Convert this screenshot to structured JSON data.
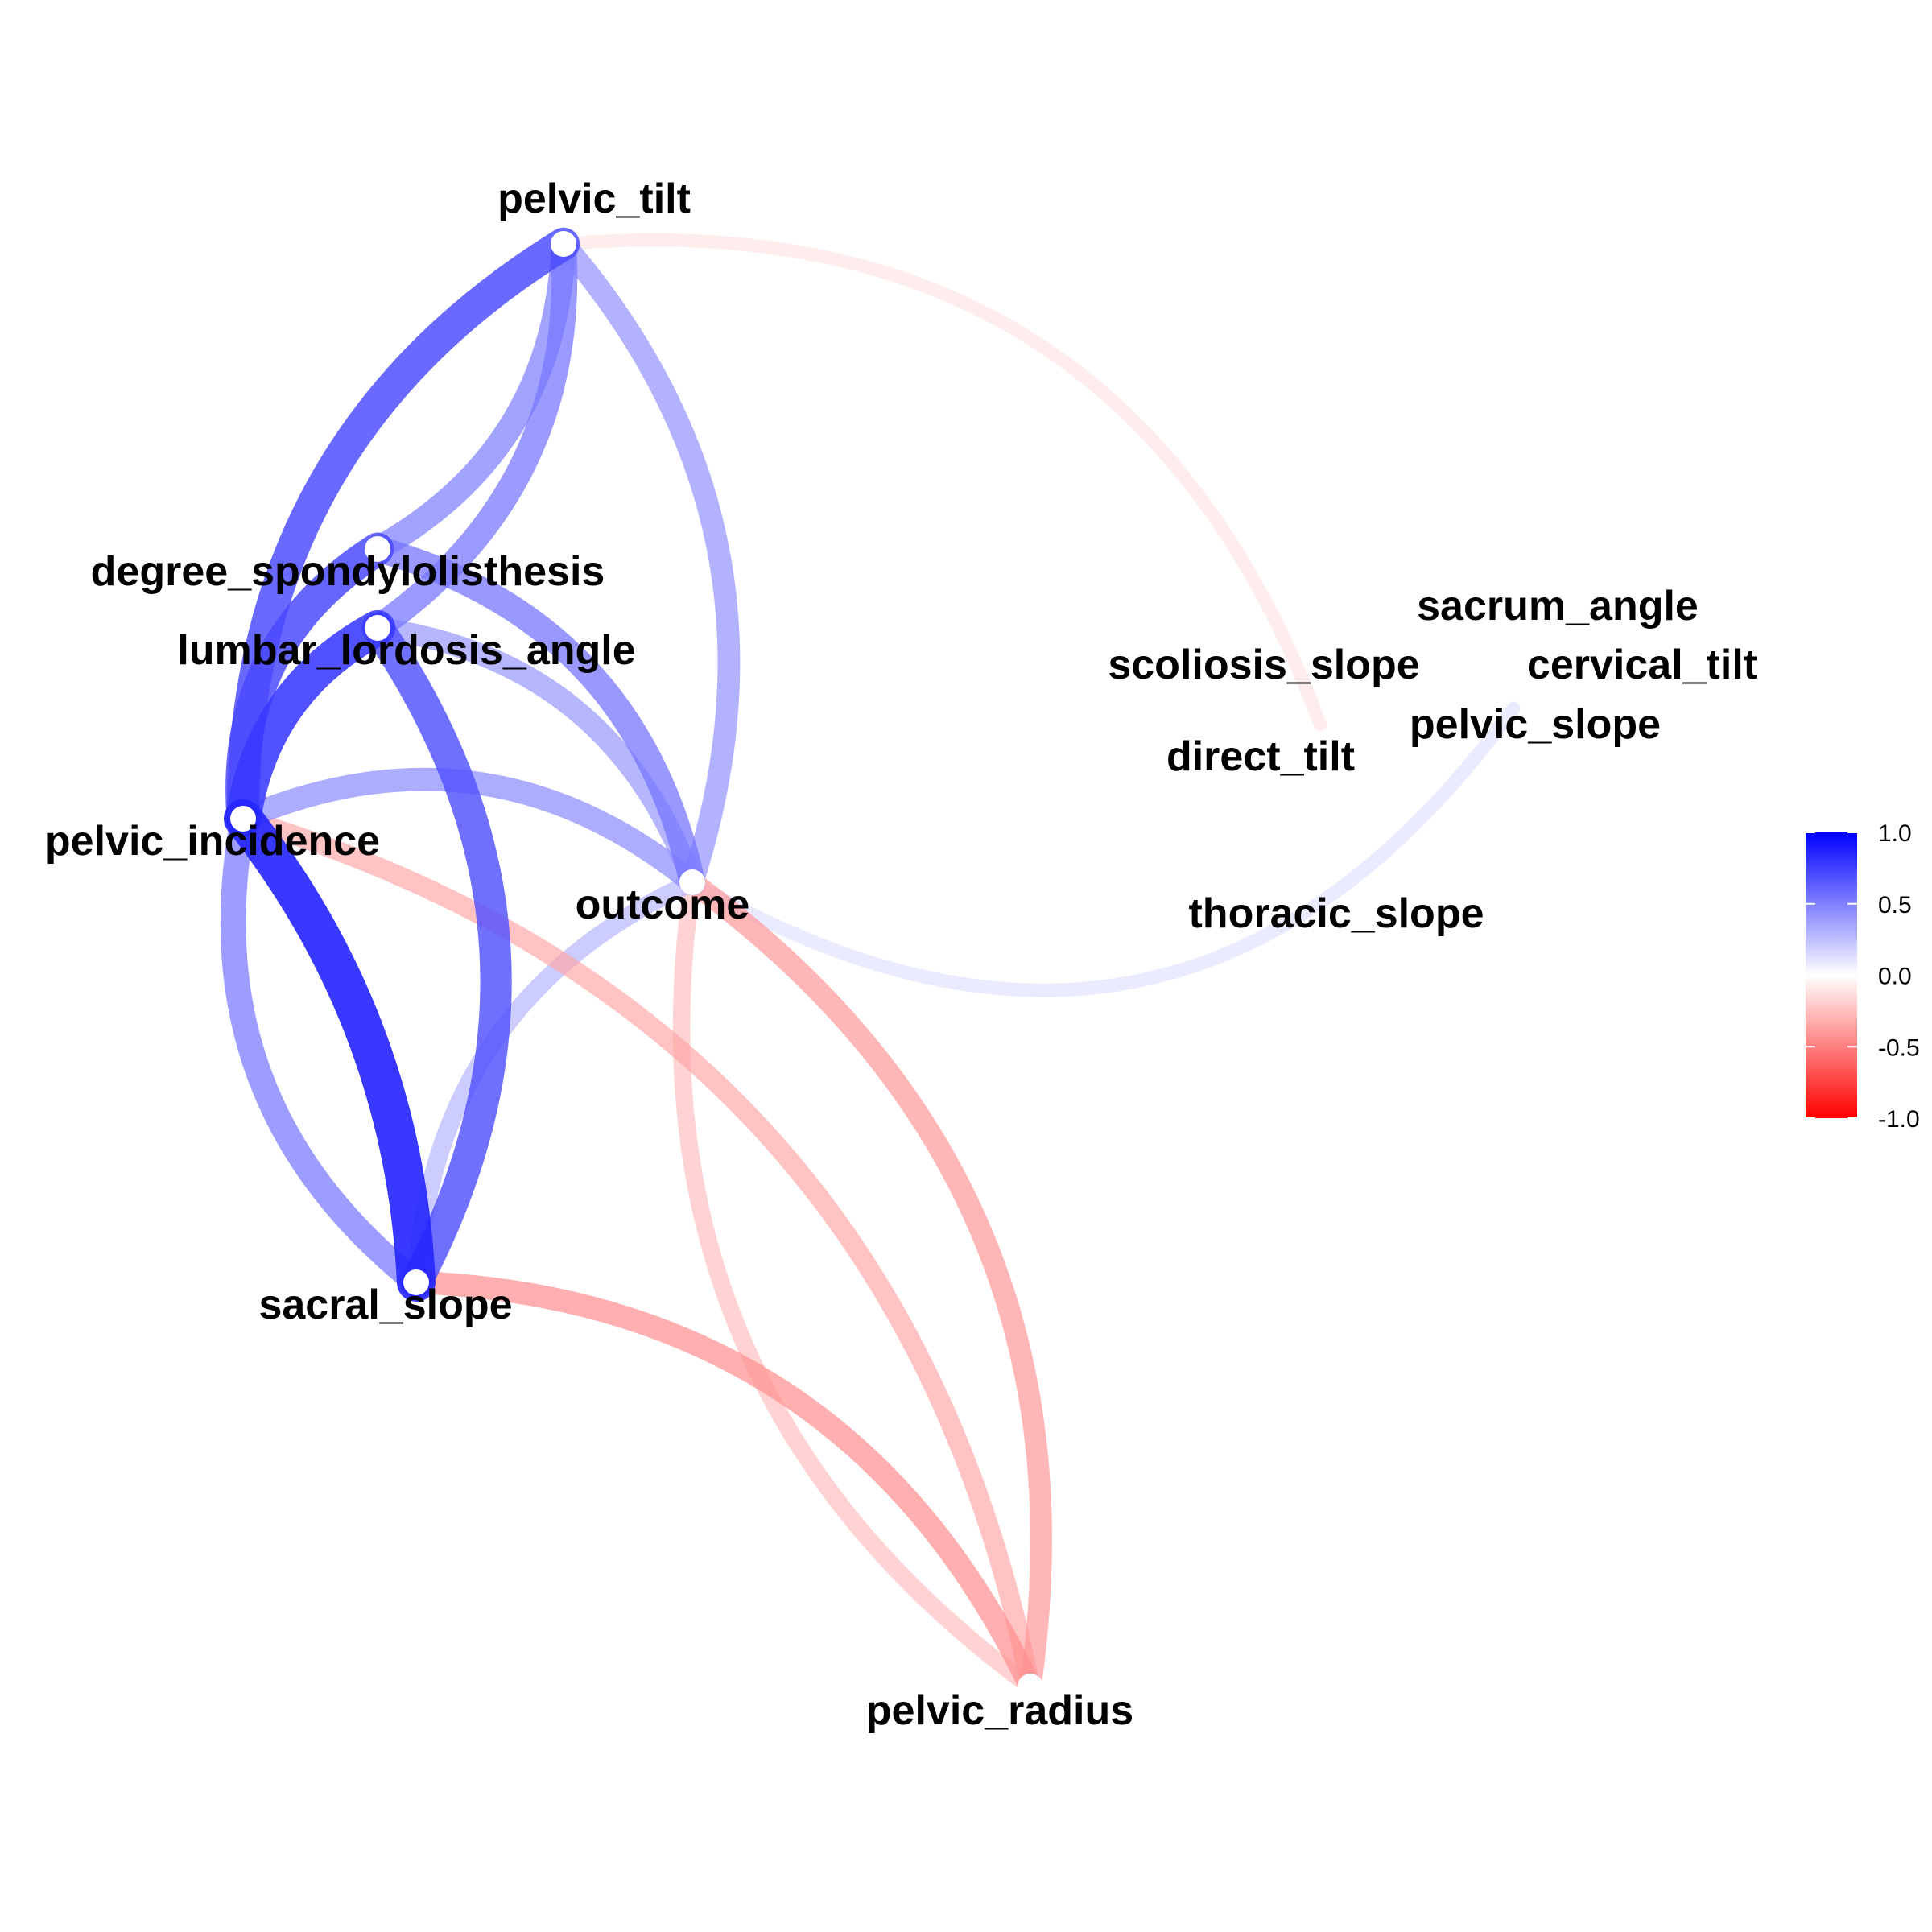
{
  "chart_data": {
    "type": "network",
    "nodes": [
      {
        "id": "pelvic_incidence",
        "label": "pelvic_incidence"
      },
      {
        "id": "pelvic_tilt",
        "label": "pelvic_tilt"
      },
      {
        "id": "lumbar_lordosis_angle",
        "label": "lumbar_lordosis_angle"
      },
      {
        "id": "sacral_slope",
        "label": "sacral_slope"
      },
      {
        "id": "pelvic_radius",
        "label": "pelvic_radius"
      },
      {
        "id": "degree_spondylolisthesis",
        "label": "degree_spondylolisthesis"
      },
      {
        "id": "pelvic_slope",
        "label": "pelvic_slope"
      },
      {
        "id": "direct_tilt",
        "label": "direct_tilt"
      },
      {
        "id": "thoracic_slope",
        "label": "thoracic_slope"
      },
      {
        "id": "cervical_tilt",
        "label": "cervical_tilt"
      },
      {
        "id": "sacrum_angle",
        "label": "sacrum_angle"
      },
      {
        "id": "scoliosis_slope",
        "label": "scoliosis_slope"
      },
      {
        "id": "outcome",
        "label": "outcome"
      }
    ],
    "edges": [
      {
        "source": "pelvic_incidence",
        "target": "sacral_slope",
        "value": 0.81
      },
      {
        "source": "pelvic_incidence",
        "target": "pelvic_tilt",
        "value": 0.63
      },
      {
        "source": "pelvic_incidence",
        "target": "lumbar_lordosis_angle",
        "value": 0.72
      },
      {
        "source": "pelvic_incidence",
        "target": "degree_spondylolisthesis",
        "value": 0.64
      },
      {
        "source": "pelvic_incidence",
        "target": "outcome",
        "value": 0.35
      },
      {
        "source": "pelvic_incidence",
        "target": "pelvic_radius",
        "value": -0.25
      },
      {
        "source": "pelvic_tilt",
        "target": "lumbar_lordosis_angle",
        "value": 0.43
      },
      {
        "source": "pelvic_tilt",
        "target": "degree_spondylolisthesis",
        "value": 0.4
      },
      {
        "source": "pelvic_tilt",
        "target": "outcome",
        "value": 0.33
      },
      {
        "source": "pelvic_tilt",
        "target": "direct_tilt",
        "value": -0.06
      },
      {
        "source": "lumbar_lordosis_angle",
        "target": "sacral_slope",
        "value": 0.6
      },
      {
        "source": "lumbar_lordosis_angle",
        "target": "outcome",
        "value": 0.31
      },
      {
        "source": "degree_spondylolisthesis",
        "target": "outcome",
        "value": 0.44
      },
      {
        "source": "sacral_slope",
        "target": "pelvic_incidence",
        "value": 0.42
      },
      {
        "source": "sacral_slope",
        "target": "outcome",
        "value": 0.21
      },
      {
        "source": "sacral_slope",
        "target": "pelvic_radius",
        "value": -0.34
      },
      {
        "source": "outcome",
        "target": "pelvic_radius",
        "value": -0.31
      },
      {
        "source": "pelvic_radius",
        "target": "outcome",
        "value": -0.18
      },
      {
        "source": "outcome",
        "target": "pelvic_slope",
        "value": 0.07
      }
    ],
    "colorbar": {
      "min": -1.0,
      "max": 1.0,
      "ticks": [
        "1.0",
        "0.5",
        "0.0",
        "-0.5",
        "-1.0"
      ],
      "low_color": "#ff0000",
      "mid_color": "#ffffff",
      "high_color": "#0000ff"
    }
  }
}
